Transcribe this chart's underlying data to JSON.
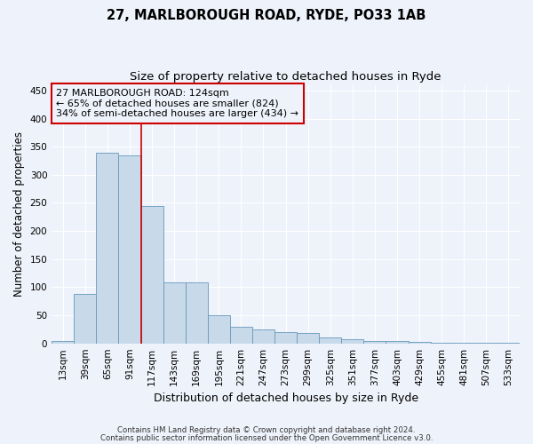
{
  "title1": "27, MARLBOROUGH ROAD, RYDE, PO33 1AB",
  "title2": "Size of property relative to detached houses in Ryde",
  "xlabel": "Distribution of detached houses by size in Ryde",
  "ylabel": "Number of detached properties",
  "footnote1": "Contains HM Land Registry data © Crown copyright and database right 2024.",
  "footnote2": "Contains public sector information licensed under the Open Government Licence v3.0.",
  "bins": [
    "13sqm",
    "39sqm",
    "65sqm",
    "91sqm",
    "117sqm",
    "143sqm",
    "169sqm",
    "195sqm",
    "221sqm",
    "247sqm",
    "273sqm",
    "299sqm",
    "325sqm",
    "351sqm",
    "377sqm",
    "403sqm",
    "429sqm",
    "455sqm",
    "481sqm",
    "507sqm",
    "533sqm"
  ],
  "values": [
    5,
    88,
    340,
    335,
    245,
    108,
    108,
    50,
    30,
    25,
    20,
    18,
    10,
    8,
    5,
    4,
    3,
    1,
    1,
    0.5,
    0.5
  ],
  "bar_color": "#c8d9ea",
  "bar_edge_color": "#6699bb",
  "property_line_x": 3.5,
  "property_line_color": "#cc0000",
  "annotation_box_color": "#cc0000",
  "annotation_text_line1": "27 MARLBOROUGH ROAD: 124sqm",
  "annotation_text_line2": "← 65% of detached houses are smaller (824)",
  "annotation_text_line3": "34% of semi-detached houses are larger (434) →",
  "ylim": [
    0,
    460
  ],
  "yticks": [
    0,
    50,
    100,
    150,
    200,
    250,
    300,
    350,
    400,
    450
  ],
  "background_color": "#eef2fa",
  "grid_color": "#ffffff",
  "title1_fontsize": 10.5,
  "title2_fontsize": 9.5,
  "axis_label_fontsize": 8.5,
  "tick_fontsize": 7.5,
  "footnote_fontsize": 6.2
}
